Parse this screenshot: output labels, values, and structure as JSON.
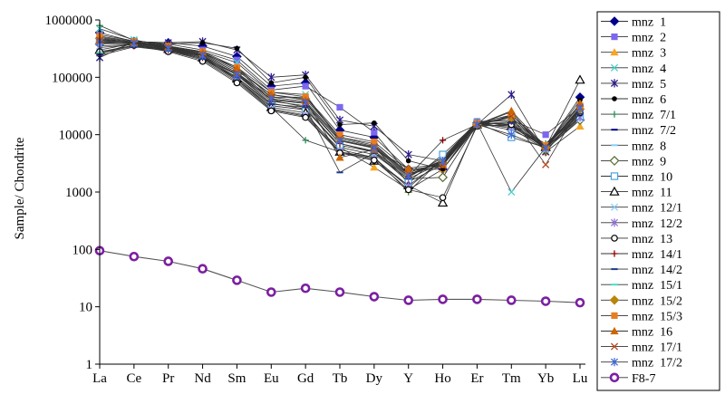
{
  "chart_data": {
    "type": "line",
    "title": "",
    "xlabel": "",
    "ylabel": "Sample/ Chondrite",
    "yscale": "log",
    "ylim": [
      1,
      1000000
    ],
    "yticks": [
      "1",
      "10",
      "100",
      "1000",
      "10000",
      "100000",
      "1000000"
    ],
    "categories": [
      "La",
      "Ce",
      "Pr",
      "Nd",
      "Sm",
      "Eu",
      "Gd",
      "Tb",
      "Dy",
      "Y",
      "Ho",
      "Er",
      "Tm",
      "Yb",
      "Lu"
    ],
    "series": [
      {
        "name": "mnz  1",
        "color": "#00008b",
        "marker": "diamond-filled",
        "values": [
          600000,
          420000,
          400000,
          350000,
          230000,
          70000,
          80000,
          12000,
          9000,
          2500,
          2500,
          16000,
          20000,
          6000,
          45000
        ]
      },
      {
        "name": "mnz  2",
        "color": "#7b68ee",
        "marker": "square-filled",
        "values": [
          550000,
          430000,
          380000,
          300000,
          200000,
          60000,
          70000,
          30000,
          11000,
          2000,
          3000,
          17000,
          18000,
          10000,
          30000
        ]
      },
      {
        "name": "mnz  3",
        "color": "#f5a623",
        "marker": "triangle-filled",
        "values": [
          400000,
          380000,
          300000,
          250000,
          120000,
          40000,
          30000,
          6000,
          2700,
          1100,
          2500,
          15000,
          25000,
          5000,
          14000
        ]
      },
      {
        "name": "mnz  4",
        "color": "#48d1cc",
        "marker": "x",
        "values": [
          700000,
          450000,
          350000,
          280000,
          180000,
          55000,
          50000,
          8000,
          6000,
          1500,
          3000,
          16000,
          1000,
          6000,
          20000
        ]
      },
      {
        "name": "mnz  5",
        "color": "#2b1b8f",
        "marker": "star",
        "values": [
          220000,
          420000,
          400000,
          420000,
          300000,
          100000,
          110000,
          18000,
          14000,
          4500,
          3500,
          15000,
          50000,
          5000,
          25000
        ]
      },
      {
        "name": "mnz  6",
        "color": "#000000",
        "marker": "dot-filled",
        "values": [
          250000,
          400000,
          380000,
          400000,
          320000,
          80000,
          100000,
          15000,
          16000,
          3500,
          2500,
          14000,
          22000,
          6000,
          40000
        ]
      },
      {
        "name": "mnz  7/1",
        "color": "#2e8b57",
        "marker": "plus",
        "values": [
          800000,
          440000,
          360000,
          230000,
          90000,
          30000,
          8000,
          5000,
          4000,
          1000,
          4000,
          17000,
          14000,
          7000,
          25000
        ]
      },
      {
        "name": "mnz  7/2",
        "color": "#00008b",
        "marker": "dash",
        "values": [
          450000,
          400000,
          330000,
          260000,
          150000,
          45000,
          45000,
          9000,
          7000,
          2000,
          3500,
          16000,
          15000,
          6000,
          30000
        ]
      },
      {
        "name": "mnz  8",
        "color": "#87cefa",
        "marker": "dash",
        "values": [
          500000,
          410000,
          340000,
          270000,
          140000,
          40000,
          35000,
          7000,
          5000,
          1800,
          4000,
          16000,
          12000,
          6500,
          22000
        ]
      },
      {
        "name": "mnz  9",
        "color": "#556b2f",
        "marker": "diamond-open",
        "values": [
          380000,
          400000,
          330000,
          240000,
          110000,
          35000,
          28000,
          6000,
          4500,
          1700,
          1800,
          15000,
          16000,
          5500,
          18000
        ]
      },
      {
        "name": "mnz  10",
        "color": "#4aa3df",
        "marker": "square-open",
        "values": [
          420000,
          410000,
          320000,
          230000,
          100000,
          32000,
          27000,
          6500,
          5000,
          1500,
          4500,
          16000,
          9000,
          6000,
          21000
        ]
      },
      {
        "name": "mnz  11",
        "color": "#000000",
        "marker": "triangle-open",
        "values": [
          300000,
          390000,
          310000,
          220000,
          95000,
          30000,
          24000,
          5000,
          3500,
          1300,
          650,
          15000,
          14000,
          6000,
          90000
        ]
      },
      {
        "name": "mnz  12/1",
        "color": "#87cefa",
        "marker": "x",
        "values": [
          350000,
          380000,
          300000,
          210000,
          90000,
          28000,
          22000,
          5500,
          4000,
          1200,
          3800,
          16000,
          13000,
          5500,
          19000
        ]
      },
      {
        "name": "mnz  12/2",
        "color": "#9370db",
        "marker": "star",
        "values": [
          330000,
          370000,
          290000,
          200000,
          85000,
          27000,
          21000,
          5000,
          3800,
          1300,
          3500,
          15000,
          14000,
          5800,
          20000
        ]
      },
      {
        "name": "mnz  13",
        "color": "#000000",
        "marker": "circle-open",
        "values": [
          280000,
          360000,
          280000,
          190000,
          80000,
          26000,
          20000,
          4800,
          3600,
          1100,
          800,
          14000,
          15000,
          6200,
          24000
        ]
      },
      {
        "name": "mnz  14/1",
        "color": "#8b0000",
        "marker": "plus",
        "values": [
          260000,
          350000,
          300000,
          220000,
          110000,
          38000,
          32000,
          7000,
          5200,
          1900,
          8000,
          15000,
          17000,
          6000,
          26000
        ]
      },
      {
        "name": "mnz  14/2",
        "color": "#1e3a8a",
        "marker": "dash",
        "values": [
          240000,
          340000,
          290000,
          210000,
          100000,
          34000,
          30000,
          2200,
          4800,
          1700,
          3300,
          15000,
          16000,
          5700,
          23000
        ]
      },
      {
        "name": "mnz  15/1",
        "color": "#40e0d0",
        "marker": "dash",
        "values": [
          270000,
          360000,
          310000,
          230000,
          115000,
          42000,
          36000,
          8000,
          6000,
          2000,
          3600,
          16000,
          18000,
          6300,
          27000
        ]
      },
      {
        "name": "mnz  15/2",
        "color": "#b8860b",
        "marker": "diamond-filled",
        "values": [
          480000,
          400000,
          340000,
          260000,
          130000,
          50000,
          42000,
          9000,
          6500,
          2200,
          3200,
          15000,
          20000,
          6000,
          28000
        ]
      },
      {
        "name": "mnz  15/3",
        "color": "#e67e22",
        "marker": "square-filled",
        "values": [
          520000,
          420000,
          350000,
          280000,
          150000,
          55000,
          46000,
          10000,
          7500,
          2400,
          3000,
          16000,
          22000,
          6500,
          32000
        ]
      },
      {
        "name": "mnz  16",
        "color": "#cd6600",
        "marker": "triangle-filled",
        "values": [
          460000,
          410000,
          340000,
          270000,
          140000,
          50000,
          40000,
          4000,
          5500,
          2600,
          3100,
          15000,
          26000,
          6000,
          35000
        ]
      },
      {
        "name": "mnz  17/1",
        "color": "#b5481d",
        "marker": "x",
        "values": [
          440000,
          400000,
          330000,
          250000,
          120000,
          45000,
          38000,
          8500,
          6200,
          2100,
          2900,
          15000,
          21000,
          3000,
          30000
        ]
      },
      {
        "name": "mnz  17/2",
        "color": "#4169e1",
        "marker": "star",
        "values": [
          410000,
          390000,
          320000,
          240000,
          110000,
          42000,
          36000,
          7800,
          5800,
          1900,
          3400,
          15000,
          10000,
          5800,
          29000
        ]
      },
      {
        "name": "F8-7",
        "color": "#7b1fa2",
        "marker": "circle-thick",
        "values": [
          95,
          75,
          62,
          46,
          29,
          18,
          21,
          18,
          15,
          13,
          13.5,
          13.5,
          13,
          12.5,
          11.8
        ]
      }
    ]
  }
}
